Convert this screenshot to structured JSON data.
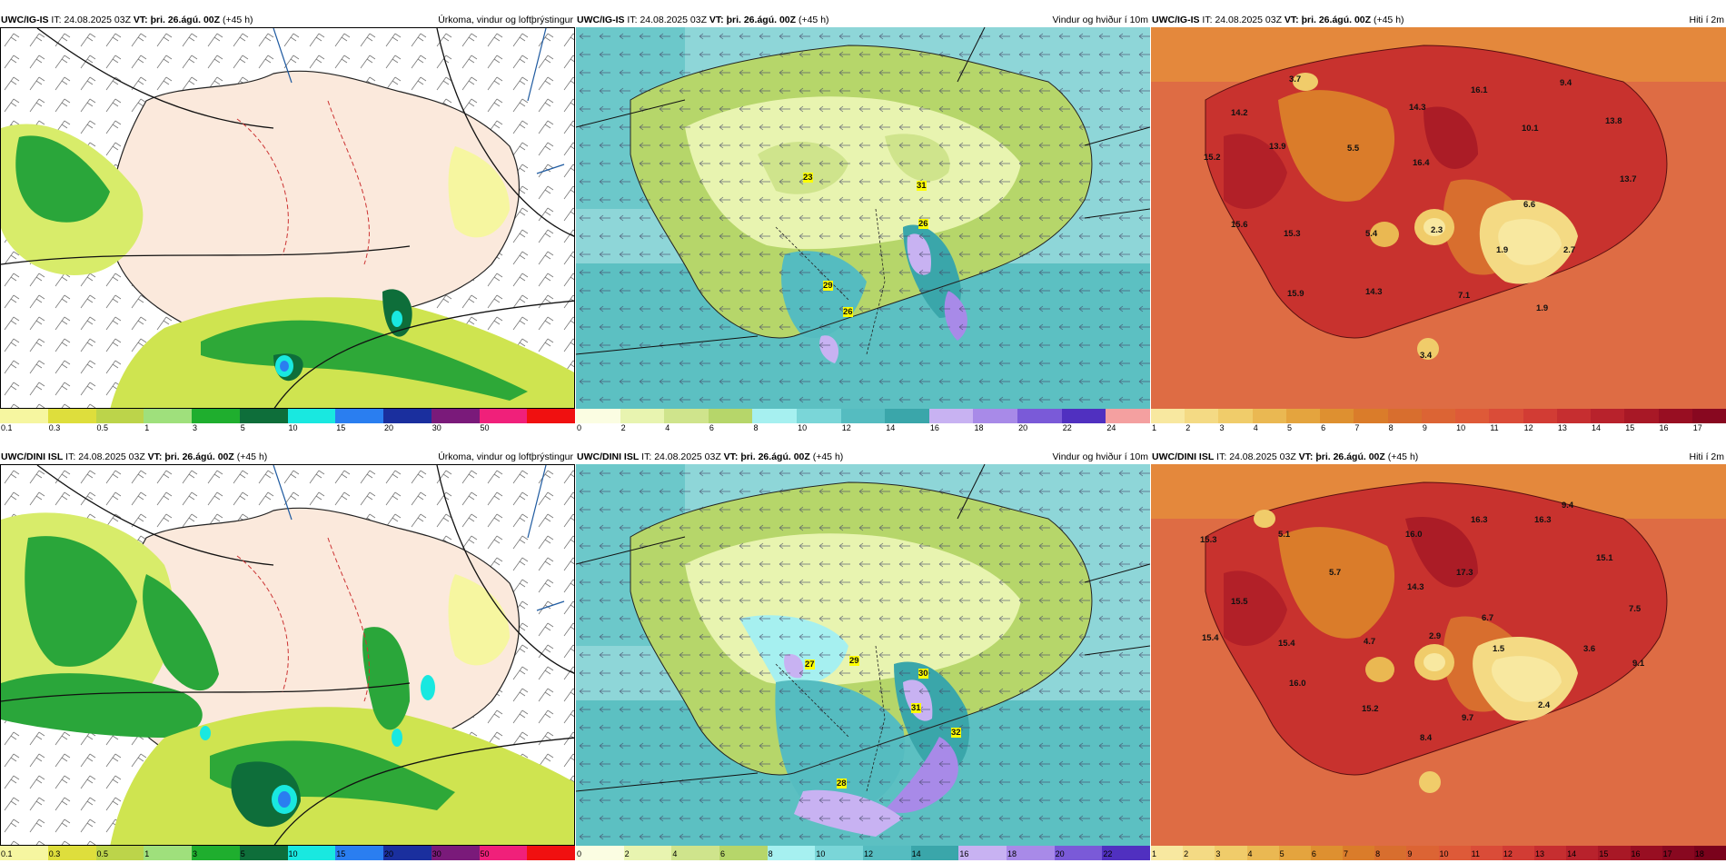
{
  "rows": [
    {
      "model": "UWC/IG-IS",
      "it_label": "IT:",
      "it": "24.08.2025 03Z",
      "vt_label": "VT:",
      "vt": "þri. 26.ágú. 00Z",
      "lead": "(+45 h)",
      "panels": [
        {
          "title": "Úrkoma, vindur og loftþrýstingur",
          "type": "precip"
        },
        {
          "title": "Vindur og hviður í 10m",
          "type": "wind",
          "labels": [
            "23",
            "31",
            "26",
            "29",
            "26"
          ]
        },
        {
          "title": "Hiti í 2m",
          "type": "temp",
          "labels": [
            "3.7",
            "16.1",
            "9.4",
            "14.2",
            "14.3",
            "13.8",
            "15.2",
            "13.9",
            "5.5",
            "10.1",
            "16.4",
            "13.7",
            "6.6",
            "15.6",
            "15.3",
            "5.4",
            "2.3",
            "1.9",
            "2.7",
            "15.9",
            "14.3",
            "7.1",
            "1.9",
            "3.4"
          ]
        }
      ]
    },
    {
      "model": "UWC/DINI ISL",
      "it_label": "IT:",
      "it": "24.08.2025 03Z",
      "vt_label": "VT:",
      "vt": "þri. 26.ágú. 00Z",
      "lead": "(+45 h)",
      "panels": [
        {
          "title": "Úrkoma, vindur og loftþrýstingur",
          "type": "precip"
        },
        {
          "title": "Vindur og hviður í 10m",
          "type": "wind",
          "labels": [
            "27",
            "29",
            "30",
            "31",
            "32",
            "28"
          ]
        },
        {
          "title": "Hiti í 2m",
          "type": "temp",
          "labels": [
            "9.4",
            "16.3",
            "16.3",
            "15.3",
            "5.1",
            "16.0",
            "15.1",
            "5.7",
            "17.3",
            "14.3",
            "15.5",
            "7.5",
            "6.7",
            "15.4",
            "15.4",
            "4.7",
            "2.9",
            "1.5",
            "3.6",
            "9.1",
            "16.0",
            "15.2",
            "9.7",
            "2.4",
            "8.4"
          ]
        }
      ]
    }
  ],
  "colorbars": {
    "precip": {
      "ticks": [
        "0.1",
        "0.3",
        "0.5",
        "1",
        "3",
        "5",
        "10",
        "15",
        "20",
        "30",
        "50"
      ],
      "colors": [
        "#f6f6a0",
        "#dede3c",
        "#bcd44a",
        "#9fe07c",
        "#1fae2e",
        "#0e6e3a",
        "#19e8e0",
        "#2a7ef0",
        "#1a2f9e",
        "#7a1a7a",
        "#f0207a",
        "#f01010"
      ]
    },
    "wind": {
      "ticks": [
        "0",
        "2",
        "4",
        "6",
        "8",
        "10",
        "12",
        "14",
        "16",
        "18",
        "20",
        "22",
        "24"
      ],
      "colors_top": [
        "#fbfde2",
        "#e8f4b0",
        "#cfe48c",
        "#b6d66a",
        "#a6f0f0",
        "#7ad6d8",
        "#55bcc0",
        "#3aa6aa",
        "#c8b2f2",
        "#a88ae8",
        "#7a5ad8",
        "#5030c0",
        "#f4a0a0"
      ],
      "ticks_bottom": [
        "0",
        "2",
        "4",
        "6",
        "8",
        "10",
        "12",
        "14",
        "16",
        "18",
        "20",
        "22"
      ],
      "colors_bottom": [
        "#fbfde2",
        "#e8f4b0",
        "#cfe48c",
        "#b6d66a",
        "#a6f0f0",
        "#7ad6d8",
        "#55bcc0",
        "#3aa6aa",
        "#c8b2f2",
        "#a88ae8",
        "#7a5ad8",
        "#5030c0"
      ]
    },
    "temp": {
      "ticks_top": [
        "1",
        "2",
        "3",
        "4",
        "5",
        "6",
        "7",
        "8",
        "9",
        "10",
        "11",
        "12",
        "13",
        "14",
        "15",
        "16",
        "17"
      ],
      "ticks_bottom": [
        "1",
        "2",
        "3",
        "4",
        "5",
        "6",
        "7",
        "8",
        "9",
        "10",
        "11",
        "12",
        "13",
        "14",
        "15",
        "16",
        "17",
        "18"
      ],
      "colors": [
        "#f8e8a0",
        "#f4da84",
        "#f0cc6a",
        "#eab852",
        "#e4a43e",
        "#de9030",
        "#da7c2a",
        "#d86e2e",
        "#dc6434",
        "#de5a38",
        "#da4c38",
        "#d23c34",
        "#c62e30",
        "#b8222c",
        "#a81826",
        "#980e22",
        "#880820",
        "#7a021c"
      ]
    }
  }
}
